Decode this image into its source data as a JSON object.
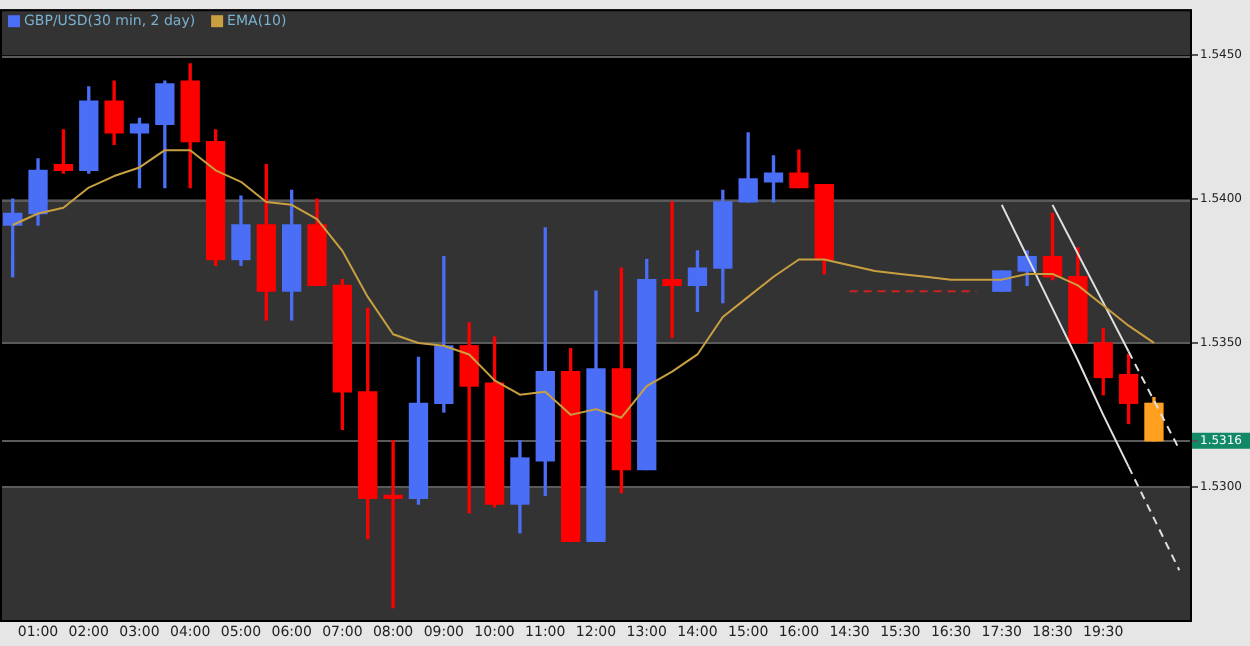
{
  "chart_data": {
    "type": "candlestick",
    "legend": "top left",
    "grid": "y",
    "marker": "none",
    "categories": [
      null,
      "01:00",
      null,
      "02:00",
      null,
      "03:00",
      null,
      "04:00",
      null,
      "05:00",
      null,
      "06:00",
      null,
      "07:00",
      null,
      "08:00",
      null,
      "09:00",
      null,
      "10:00",
      null,
      "11:00",
      null,
      "12:00",
      null,
      "13:00",
      null,
      "14:00",
      null,
      "15:00",
      null,
      "16:00",
      null,
      "14:30",
      null,
      "15:30",
      null,
      "16:30",
      null,
      "17:30",
      null,
      "18:30",
      null,
      "19:30",
      null,
      null,
      null
    ],
    "ylim": [
      1.5253,
      1.5466
    ],
    "yticks": [
      {
        "value": 1.53,
        "label": "1.5300"
      },
      {
        "value": 1.5316,
        "label": "1.5316"
      },
      {
        "value": 1.535,
        "label": "1.5350"
      },
      {
        "value": 1.54,
        "label": "1.5400"
      },
      {
        "value": 1.545,
        "label": "1.5450"
      }
    ],
    "bands": [
      {
        "axis": "y",
        "from": 1.54,
        "to": 1.545,
        "color": "#000000"
      },
      {
        "axis": "y",
        "from": 1.53,
        "to": 1.535,
        "color": "#000000"
      }
    ],
    "series": [
      {
        "type": "candlestick",
        "name": "GBP/USD(30 min, 2 day)",
        "color": "#4a6ef5",
        "ohlc": [
          [
            1.5391,
            1.54,
            1.5373,
            1.5395
          ],
          [
            1.5395,
            1.5414,
            1.5391,
            1.541
          ],
          [
            1.5412,
            1.5424,
            1.5409,
            1.541
          ],
          [
            1.541,
            1.5439,
            1.5409,
            1.5434
          ],
          [
            1.5434,
            1.5441,
            1.5419,
            1.5423
          ],
          [
            1.5423,
            1.5428,
            1.5404,
            1.5426
          ],
          [
            1.5426,
            1.5441,
            1.5404,
            1.544
          ],
          [
            1.5441,
            1.5447,
            1.5404,
            1.542
          ],
          [
            1.542,
            1.5424,
            1.5377,
            1.5379
          ],
          [
            1.5379,
            1.5401,
            1.5377,
            1.5391
          ],
          [
            1.5391,
            1.5412,
            1.5358,
            1.5368
          ],
          [
            1.5368,
            1.5403,
            1.5358,
            1.5391
          ],
          [
            1.5391,
            1.54,
            1.537,
            1.537
          ],
          [
            1.537,
            1.5372,
            1.532,
            1.5333
          ],
          [
            1.5333,
            1.5362,
            1.5282,
            1.5296
          ],
          [
            1.5297,
            1.5316,
            1.5258,
            1.5296
          ],
          [
            1.5296,
            1.5345,
            1.5294,
            1.5329
          ],
          [
            1.5329,
            1.538,
            1.5326,
            1.5349
          ],
          [
            1.5349,
            1.5357,
            1.5291,
            1.5335
          ],
          [
            1.5336,
            1.5352,
            1.5293,
            1.5294
          ],
          [
            1.5294,
            1.5316,
            1.5284,
            1.531
          ],
          [
            1.5309,
            1.539,
            1.5297,
            1.534
          ],
          [
            1.534,
            1.5348,
            1.5281,
            1.5281
          ],
          [
            1.5281,
            1.5368,
            1.5281,
            1.5341
          ],
          [
            1.5341,
            1.5376,
            1.5298,
            1.5306
          ],
          [
            1.5306,
            1.5379,
            1.5306,
            1.5372
          ],
          [
            1.5372,
            1.5399,
            1.5352,
            1.537
          ],
          [
            1.537,
            1.5382,
            1.5361,
            1.5376
          ],
          [
            1.5376,
            1.5403,
            1.5364,
            1.5399
          ],
          [
            1.5399,
            1.5423,
            1.5399,
            1.5407
          ],
          [
            1.5406,
            1.5415,
            1.5399,
            1.5409
          ],
          [
            1.5409,
            1.5417,
            1.5404,
            1.5404
          ],
          [
            1.5405,
            1.5405,
            1.5374,
            1.5379
          ],
          null,
          null,
          null,
          null,
          null,
          null,
          [
            1.5368,
            1.5375,
            1.5368,
            1.5375
          ],
          [
            1.5375,
            1.5382,
            1.537,
            1.538
          ],
          [
            1.538,
            1.5395,
            1.5372,
            1.5373
          ],
          [
            1.5373,
            1.5383,
            1.535,
            1.535
          ],
          [
            1.535,
            1.5355,
            1.5332,
            1.5338
          ],
          [
            1.5339,
            1.5346,
            1.5322,
            1.5329
          ],
          [
            1.5329,
            1.5331,
            1.5316,
            1.5316
          ],
          null
        ],
        "colors": [
          "#4a6ef5",
          "#4a6ef5",
          "#ff0000",
          "#4a6ef5",
          "#ff0000",
          "#4a6ef5",
          "#4a6ef5",
          "#ff0000",
          "#ff0000",
          "#4a6ef5",
          "#ff0000",
          "#4a6ef5",
          "#ff0000",
          "#ff0000",
          "#ff0000",
          "#ff0000",
          "#4a6ef5",
          "#4a6ef5",
          "#ff0000",
          "#ff0000",
          "#4a6ef5",
          "#4a6ef5",
          "#ff0000",
          "#4a6ef5",
          "#ff0000",
          "#4a6ef5",
          "#ff0000",
          "#4a6ef5",
          "#4a6ef5",
          "#4a6ef5",
          "#4a6ef5",
          "#ff0000",
          "#ff0000",
          null,
          null,
          null,
          null,
          null,
          null,
          "#4a6ef5",
          "#4a6ef5",
          "#ff0000",
          "#ff0000",
          "#ff0000",
          "#ff0000",
          "#ffa020",
          null
        ]
      },
      {
        "type": "line",
        "name": "EMA(10)",
        "color": "#c8a040",
        "values": [
          1.5391,
          1.5395,
          1.5397,
          1.5404,
          1.5408,
          1.5411,
          1.5417,
          1.5417,
          1.541,
          1.5406,
          1.5399,
          1.5398,
          1.5393,
          1.5382,
          1.5366,
          1.5353,
          1.535,
          1.5349,
          1.5346,
          1.5337,
          1.5332,
          1.5333,
          1.5325,
          1.5327,
          1.5324,
          1.5335,
          1.534,
          1.5346,
          1.5359,
          1.5366,
          1.5373,
          1.5379,
          1.5379,
          1.5377,
          1.5375,
          1.5374,
          1.5373,
          1.5372,
          1.5372,
          1.5372,
          1.5374,
          1.5374,
          1.537,
          1.5363,
          1.5356,
          1.535,
          null
        ]
      },
      {
        "type": "line",
        "color": "#cc2222",
        "line_style": "dashed",
        "values": [
          null,
          null,
          null,
          null,
          null,
          null,
          null,
          null,
          null,
          null,
          null,
          null,
          null,
          null,
          null,
          null,
          null,
          null,
          null,
          null,
          null,
          null,
          null,
          null,
          null,
          null,
          null,
          null,
          null,
          null,
          null,
          null,
          null,
          1.5368,
          1.5368,
          1.5368,
          1.5368,
          1.5368,
          1.5368,
          null,
          null,
          null,
          null,
          null,
          null,
          null,
          null
        ]
      },
      {
        "type": "line",
        "color": "#e0e0e0",
        "line_style": "solid",
        "values": [
          null,
          null,
          null,
          null,
          null,
          null,
          null,
          null,
          null,
          null,
          null,
          null,
          null,
          null,
          null,
          null,
          null,
          null,
          null,
          null,
          null,
          null,
          null,
          null,
          null,
          null,
          null,
          null,
          null,
          null,
          null,
          null,
          null,
          null,
          null,
          null,
          null,
          null,
          null,
          1.5398,
          1.538,
          1.5362,
          1.5344,
          1.5325,
          1.5307,
          null,
          null
        ]
      },
      {
        "type": "line",
        "color": "#e0e0e0",
        "line_style": "dashed",
        "values": [
          null,
          null,
          null,
          null,
          null,
          null,
          null,
          null,
          null,
          null,
          null,
          null,
          null,
          null,
          null,
          null,
          null,
          null,
          null,
          null,
          null,
          null,
          null,
          null,
          null,
          null,
          null,
          null,
          null,
          null,
          null,
          null,
          null,
          null,
          null,
          null,
          null,
          null,
          null,
          null,
          null,
          null,
          null,
          null,
          1.5307,
          1.5289,
          1.5271
        ]
      },
      {
        "type": "line",
        "color": "#e0e0e0",
        "line_style": "solid",
        "values": [
          null,
          null,
          null,
          null,
          null,
          null,
          null,
          null,
          null,
          null,
          null,
          null,
          null,
          null,
          null,
          null,
          null,
          null,
          null,
          null,
          null,
          null,
          null,
          null,
          null,
          null,
          null,
          null,
          null,
          null,
          null,
          null,
          null,
          null,
          null,
          null,
          null,
          null,
          null,
          null,
          null,
          1.5398,
          1.5381,
          1.5364,
          1.5347,
          null,
          null
        ]
      },
      {
        "type": "line",
        "color": "#e0e0e0",
        "line_style": "dashed",
        "values": [
          null,
          null,
          null,
          null,
          null,
          null,
          null,
          null,
          null,
          null,
          null,
          null,
          null,
          null,
          null,
          null,
          null,
          null,
          null,
          null,
          null,
          null,
          null,
          null,
          null,
          null,
          null,
          null,
          null,
          null,
          null,
          null,
          null,
          null,
          null,
          null,
          null,
          null,
          null,
          null,
          null,
          null,
          null,
          null,
          1.5347,
          1.533,
          1.5313
        ]
      }
    ]
  }
}
